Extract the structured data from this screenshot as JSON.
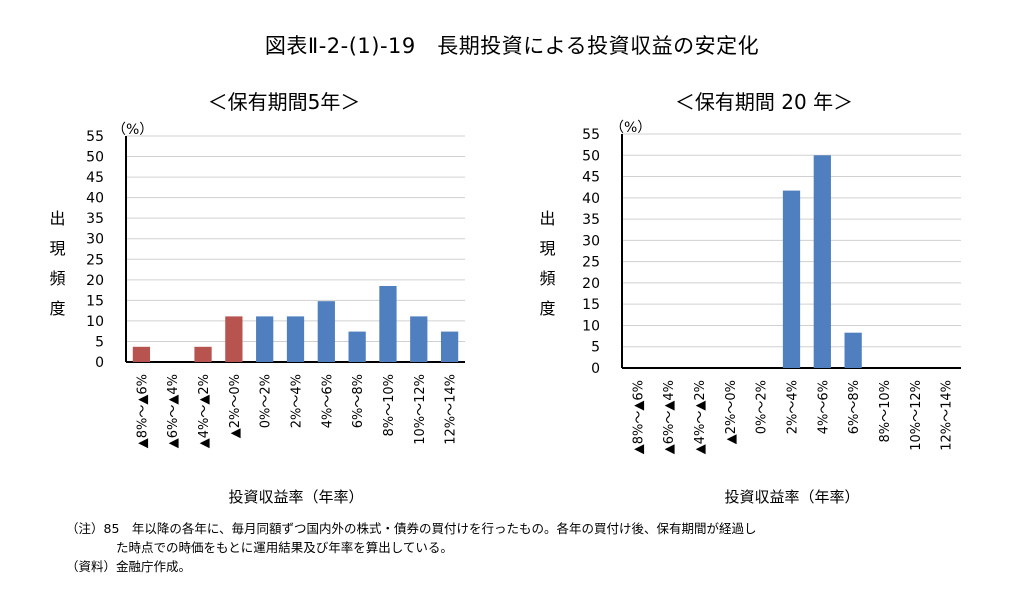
{
  "title": "図表Ⅱ-2-(1)-19　長期投資による投資収益の安定化",
  "chart_data": [
    {
      "type": "bar",
      "title": "＜保有期間5年＞",
      "unit": "（%）",
      "ylabel": "出現頻度",
      "xlabel": "投資収益率（年率）",
      "ylim": [
        0,
        55
      ],
      "yticks": [
        0,
        5,
        10,
        15,
        20,
        25,
        30,
        35,
        40,
        45,
        50,
        55
      ],
      "grid": true,
      "categories": [
        "▲8%～▲6%",
        "▲6%～▲4%",
        "▲4%～▲2%",
        "▲2%～0%",
        "0%～2%",
        "2%～4%",
        "4%～6%",
        "6%～8%",
        "8%～10%",
        "10%～12%",
        "12%～14%"
      ],
      "values": [
        3.7,
        0,
        3.7,
        11.1,
        11.1,
        11.1,
        14.8,
        7.4,
        18.5,
        11.1,
        7.4
      ],
      "bar_colors": [
        "#b85450",
        "#b85450",
        "#b85450",
        "#b85450",
        "#4f7fbf",
        "#4f7fbf",
        "#4f7fbf",
        "#4f7fbf",
        "#4f7fbf",
        "#4f7fbf",
        "#4f7fbf"
      ]
    },
    {
      "type": "bar",
      "title": "＜保有期間 20 年＞",
      "unit": "（%）",
      "ylabel": "出現頻度",
      "xlabel": "投資収益率（年率）",
      "ylim": [
        0,
        55
      ],
      "yticks": [
        0,
        5,
        10,
        15,
        20,
        25,
        30,
        35,
        40,
        45,
        50,
        55
      ],
      "grid": true,
      "categories": [
        "▲8%～▲6%",
        "▲6%～▲4%",
        "▲4%～▲2%",
        "▲2%～0%",
        "0%～2%",
        "2%～4%",
        "4%～6%",
        "6%～8%",
        "8%～10%",
        "10%～12%",
        "12%～14%"
      ],
      "values": [
        0,
        0,
        0,
        0,
        0,
        41.7,
        50,
        8.3,
        0,
        0,
        0
      ],
      "bar_colors": [
        "#4f7fbf",
        "#4f7fbf",
        "#4f7fbf",
        "#4f7fbf",
        "#4f7fbf",
        "#4f7fbf",
        "#4f7fbf",
        "#4f7fbf",
        "#4f7fbf",
        "#4f7fbf",
        "#4f7fbf"
      ]
    }
  ],
  "notes": [
    "（注）85　年以降の各年に、毎月同額ずつ国内外の株式・債券の買付けを行ったもの。各年の買付け後、保有期間が経過し",
    "た時点での時価をもとに運用結果及び年率を算出している。",
    "（資料）金融庁作成。"
  ]
}
